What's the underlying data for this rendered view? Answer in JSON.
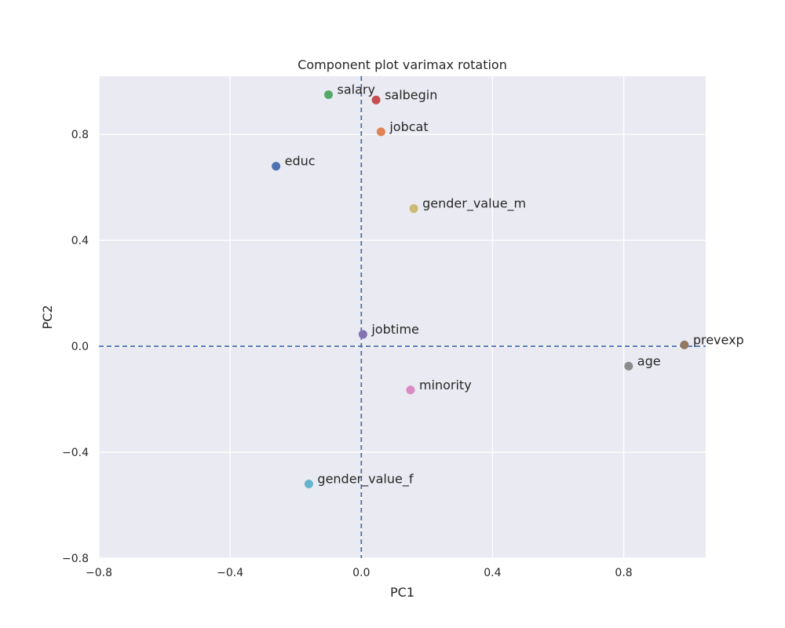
{
  "chart_data": {
    "type": "scatter",
    "title": "Component plot varimax rotation",
    "xlabel": "PC1",
    "ylabel": "PC2",
    "xlim": [
      -0.8,
      1.05
    ],
    "ylim": [
      -0.8,
      1.02
    ],
    "xticks": [
      -0.8,
      -0.4,
      0.0,
      0.4,
      0.8
    ],
    "yticks": [
      -0.8,
      -0.4,
      0.0,
      0.4,
      0.8
    ],
    "xtick_labels": [
      "−0.8",
      "−0.4",
      "0.0",
      "0.4",
      "0.8"
    ],
    "ytick_labels": [
      "−0.8",
      "−0.4",
      "0.0",
      "0.4",
      "0.8"
    ],
    "grid": true,
    "reference_lines": {
      "x": 0.0,
      "y": 0.0,
      "style": "dashed",
      "color": "#4c72b0"
    },
    "points": [
      {
        "label": "educ",
        "x": -0.26,
        "y": 0.68,
        "color": "#4c72b0"
      },
      {
        "label": "jobcat",
        "x": 0.06,
        "y": 0.81,
        "color": "#dd8452"
      },
      {
        "label": "salary",
        "x": -0.1,
        "y": 0.95,
        "color": "#55a868"
      },
      {
        "label": "salbegin",
        "x": 0.045,
        "y": 0.93,
        "color": "#c44e52"
      },
      {
        "label": "jobtime",
        "x": 0.005,
        "y": 0.045,
        "color": "#8172b3"
      },
      {
        "label": "prevexp",
        "x": 0.985,
        "y": 0.005,
        "color": "#937860"
      },
      {
        "label": "minority",
        "x": 0.15,
        "y": -0.165,
        "color": "#da8bc3"
      },
      {
        "label": "age",
        "x": 0.815,
        "y": -0.075,
        "color": "#8c8c8c"
      },
      {
        "label": "gender_value_m",
        "x": 0.16,
        "y": 0.52,
        "color": "#ccb974"
      },
      {
        "label": "gender_value_f",
        "x": -0.16,
        "y": -0.52,
        "color": "#64b5cd"
      }
    ]
  },
  "colors": {
    "plot_background": "#eaeaf2",
    "grid": "#ffffff",
    "text": "#262626"
  }
}
